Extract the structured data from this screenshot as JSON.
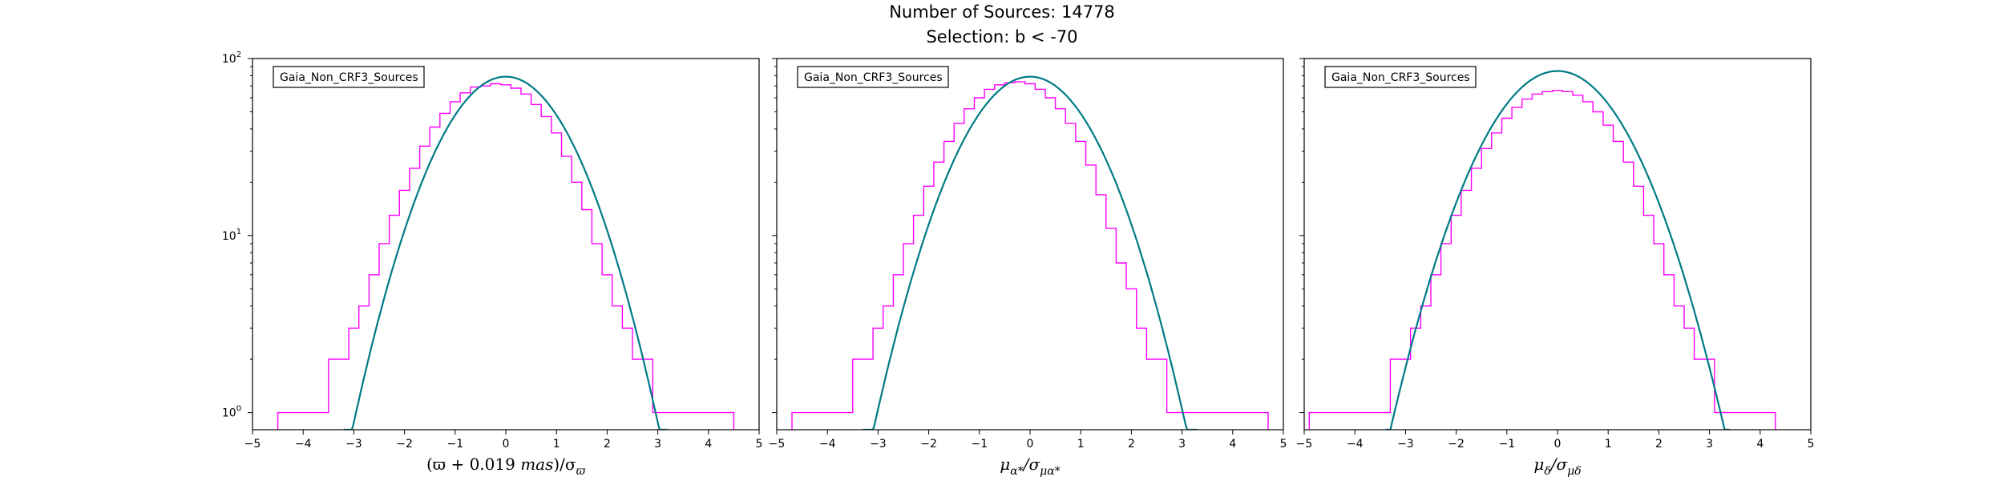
{
  "figure": {
    "title_line1": "Number of Sources: 14778",
    "title_line2": "Selection: b < -70"
  },
  "colors": {
    "histogram": "#ff00ff",
    "fit_curve": "#007b86",
    "axes": "#000000"
  },
  "chart_data": [
    {
      "type": "line",
      "title": "",
      "legend": "Gaia_Non_CRF3_Sources",
      "legend_placement": "top-left",
      "xlabel_parts": [
        "(ϖ + 0.019 ",
        "mas",
        ")/σ",
        "ϖ"
      ],
      "ylabel": "",
      "xlim": [
        -5,
        5
      ],
      "ylim": [
        0.8,
        100
      ],
      "yscale": "log",
      "grid": false,
      "x_ticks": [
        "−5",
        "−4",
        "−3",
        "−2",
        "−1",
        "0",
        "1",
        "2",
        "3",
        "4",
        "5"
      ],
      "y_ticks": [
        {
          "value": 1,
          "base": "10",
          "exp": "0"
        },
        {
          "value": 10,
          "base": "10",
          "exp": "1"
        },
        {
          "value": 100,
          "base": "10",
          "exp": "2"
        }
      ],
      "series": [
        {
          "style": "histogram-step",
          "x": [
            -4.4,
            -4.2,
            -4.0,
            -3.8,
            -3.6,
            -3.4,
            -3.2,
            -3.0,
            -2.8,
            -2.6,
            -2.4,
            -2.2,
            -2.0,
            -1.8,
            -1.6,
            -1.4,
            -1.2,
            -1.0,
            -0.8,
            -0.6,
            -0.4,
            -0.2,
            0.0,
            0.2,
            0.4,
            0.6,
            0.8,
            1.0,
            1.2,
            1.4,
            1.6,
            1.8,
            2.0,
            2.2,
            2.4,
            2.6,
            2.8,
            3.0,
            3.2,
            3.4,
            3.6,
            3.8,
            4.0,
            4.2,
            4.4
          ],
          "values": [
            1,
            1,
            1,
            1,
            1,
            2,
            2,
            3,
            4,
            6,
            9,
            13,
            18,
            24,
            32,
            41,
            49,
            57,
            64,
            69,
            70,
            72,
            71,
            68,
            63,
            55,
            47,
            38,
            28,
            20,
            14,
            9,
            6,
            4,
            3,
            2,
            2,
            1,
            1,
            1,
            1,
            1,
            1,
            1,
            1
          ]
        },
        {
          "style": "gaussian-fit",
          "amplitude": 79,
          "mean": 0.0,
          "sigma": 1.0,
          "x_range": [
            -3.2,
            3.2
          ]
        }
      ]
    },
    {
      "type": "line",
      "title": "",
      "legend": "Gaia_Non_CRF3_Sources",
      "legend_placement": "top-left",
      "xlabel_parts": [
        "μ",
        "α*",
        "/σ",
        "μα*"
      ],
      "ylabel": "",
      "xlim": [
        -5,
        5
      ],
      "ylim": [
        0.8,
        100
      ],
      "yscale": "log",
      "grid": false,
      "x_ticks": [
        "−5",
        "−4",
        "−3",
        "−2",
        "−1",
        "0",
        "1",
        "2",
        "3",
        "4",
        "5"
      ],
      "y_ticks": [],
      "series": [
        {
          "style": "histogram-step",
          "x": [
            -4.6,
            -4.4,
            -4.2,
            -4.0,
            -3.8,
            -3.6,
            -3.4,
            -3.2,
            -3.0,
            -2.8,
            -2.6,
            -2.4,
            -2.2,
            -2.0,
            -1.8,
            -1.6,
            -1.4,
            -1.2,
            -1.0,
            -0.8,
            -0.6,
            -0.4,
            -0.2,
            0.0,
            0.2,
            0.4,
            0.6,
            0.8,
            1.0,
            1.2,
            1.4,
            1.6,
            1.8,
            2.0,
            2.2,
            2.4,
            2.6,
            2.8,
            3.0,
            3.2,
            3.4,
            3.6,
            3.8,
            4.0,
            4.2,
            4.4,
            4.6
          ],
          "values": [
            1,
            1,
            1,
            1,
            1,
            1,
            2,
            2,
            3,
            4,
            6,
            9,
            13,
            19,
            26,
            34,
            43,
            52,
            60,
            67,
            71,
            73,
            74,
            72,
            67,
            60,
            52,
            43,
            34,
            25,
            17,
            11,
            7,
            5,
            3,
            2,
            2,
            1,
            1,
            1,
            1,
            1,
            1,
            1,
            1,
            1,
            1
          ]
        },
        {
          "style": "gaussian-fit",
          "amplitude": 79,
          "mean": 0.0,
          "sigma": 1.02,
          "x_range": [
            -3.3,
            3.3
          ]
        }
      ]
    },
    {
      "type": "line",
      "title": "",
      "legend": "Gaia_Non_CRF3_Sources",
      "legend_placement": "top-left",
      "xlabel_parts": [
        "μ",
        "δ",
        "/σ",
        "μδ"
      ],
      "ylabel": "",
      "xlim": [
        -5,
        5
      ],
      "ylim": [
        0.8,
        100
      ],
      "yscale": "log",
      "grid": false,
      "x_ticks": [
        "−5",
        "−4",
        "−3",
        "−2",
        "−1",
        "0",
        "1",
        "2",
        "3",
        "4",
        "5"
      ],
      "y_ticks": [],
      "series": [
        {
          "style": "histogram-step",
          "x": [
            -4.8,
            -4.6,
            -4.4,
            -4.2,
            -4.0,
            -3.8,
            -3.6,
            -3.4,
            -3.2,
            -3.0,
            -2.8,
            -2.6,
            -2.4,
            -2.2,
            -2.0,
            -1.8,
            -1.6,
            -1.4,
            -1.2,
            -1.0,
            -0.8,
            -0.6,
            -0.4,
            -0.2,
            0.0,
            0.2,
            0.4,
            0.6,
            0.8,
            1.0,
            1.2,
            1.4,
            1.6,
            1.8,
            2.0,
            2.2,
            2.4,
            2.6,
            2.8,
            3.0,
            3.2,
            3.4,
            3.6,
            3.8,
            4.0,
            4.2
          ],
          "values": [
            1,
            1,
            1,
            1,
            1,
            1,
            1,
            1,
            2,
            2,
            3,
            4,
            6,
            9,
            13,
            18,
            24,
            31,
            38,
            46,
            53,
            59,
            63,
            65,
            66,
            65,
            62,
            57,
            50,
            42,
            34,
            26,
            19,
            13,
            9,
            6,
            4,
            3,
            2,
            2,
            1,
            1,
            1,
            1,
            1,
            1
          ]
        },
        {
          "style": "gaussian-fit",
          "amplitude": 85,
          "mean": 0.0,
          "sigma": 1.08,
          "x_range": [
            -3.4,
            3.4
          ]
        }
      ]
    }
  ]
}
